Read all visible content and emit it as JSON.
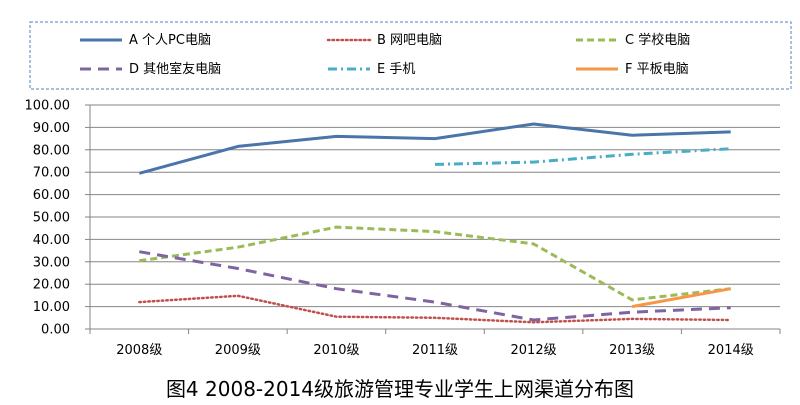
{
  "chart_data": {
    "type": "line",
    "title": "图4 2008-2014级旅游管理专业学生上网渠道分布图",
    "categories": [
      "2008级",
      "2009级",
      "2010级",
      "2011级",
      "2012级",
      "2013级",
      "2014级"
    ],
    "ylim": [
      0,
      100
    ],
    "y_ticks": [
      "0.00",
      "10.00",
      "20.00",
      "30.00",
      "40.00",
      "50.00",
      "60.00",
      "70.00",
      "80.00",
      "90.00",
      "100.00"
    ],
    "grid": true,
    "legend_position": "top",
    "series": [
      {
        "name": "A 个人PC电脑",
        "color": "#4a74aa",
        "dash": "solid",
        "values": [
          69.5,
          81.5,
          86.0,
          85.0,
          91.5,
          86.5,
          88.0
        ]
      },
      {
        "name": "B 网吧电脑",
        "color": "#c0504d",
        "dash": "dot",
        "values": [
          12.0,
          14.8,
          5.5,
          5.0,
          3.0,
          4.5,
          4.0
        ]
      },
      {
        "name": "C 学校电脑",
        "color": "#9bbb59",
        "dash": "dash",
        "values": [
          30.5,
          36.5,
          45.5,
          43.5,
          38.0,
          13.0,
          18.0
        ]
      },
      {
        "name": "D 其他室友电脑",
        "color": "#8064a2",
        "dash": "longdash",
        "values": [
          34.5,
          27.0,
          18.0,
          12.0,
          4.0,
          7.5,
          9.5
        ]
      },
      {
        "name": "E 手机",
        "color": "#4bacc6",
        "dash": "dashdot",
        "values": [
          null,
          null,
          null,
          73.5,
          74.5,
          78.0,
          80.5
        ]
      },
      {
        "name": "F 平板电脑",
        "color": "#f79646",
        "dash": "solid",
        "values": [
          null,
          null,
          null,
          null,
          null,
          10.0,
          18.0
        ]
      }
    ]
  }
}
